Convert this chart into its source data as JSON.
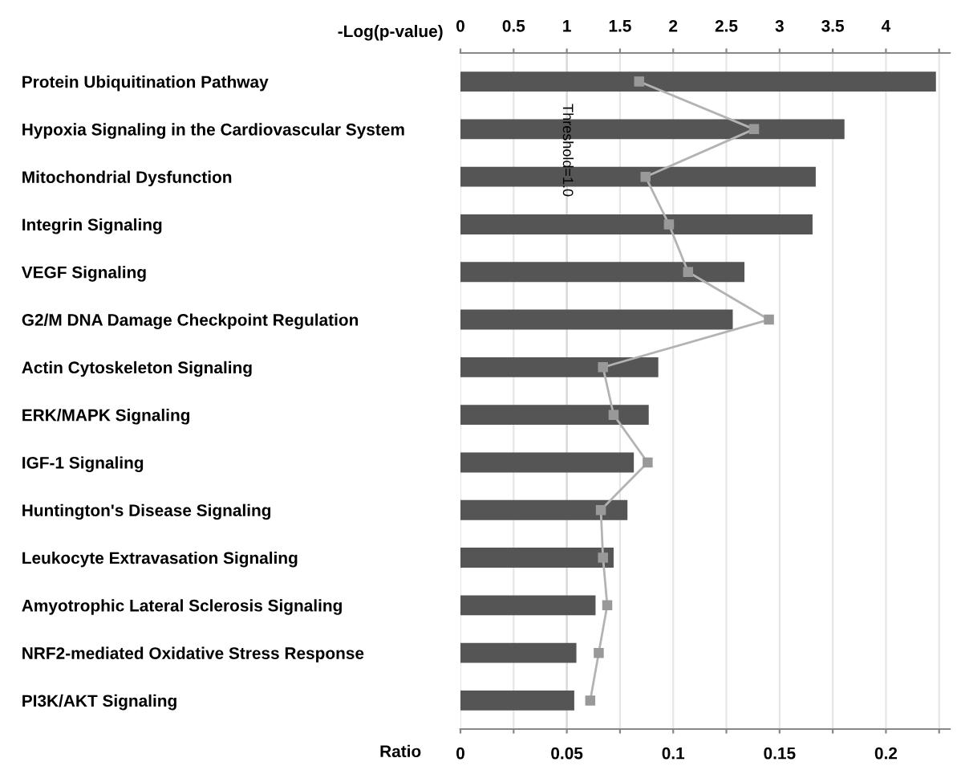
{
  "chart_data": {
    "type": "bar",
    "orientation": "horizontal",
    "xlabel": "Ratio",
    "x2label": "-Log(p-value)",
    "categories": [
      "Protein Ubiquitination Pathway",
      "Hypoxia Signaling in the Cardiovascular System",
      "Mitochondrial Dysfunction",
      "Integrin Signaling",
      "VEGF Signaling",
      "G2/M DNA Damage Checkpoint Regulation",
      "Actin Cytoskeleton Signaling",
      "ERK/MAPK Signaling",
      "IGF-1 Signaling",
      "Huntington's Disease Signaling",
      "Leukocyte Extravasation Signaling",
      "Amyotrophic Lateral Sclerosis Signaling",
      "NRF2-mediated Oxidative Stress Response",
      "PI3K/AKT Signaling"
    ],
    "series": [
      {
        "axis": "x2",
        "color": "#555555",
        "values": [
          4.47,
          3.61,
          3.34,
          3.31,
          2.67,
          2.56,
          1.86,
          1.77,
          1.63,
          1.57,
          1.44,
          1.27,
          1.09,
          1.07
        ]
      },
      {
        "type": "line",
        "color": "#b3b3b3",
        "marker": "square",
        "line_style": "solid",
        "values": [
          0.084,
          0.138,
          0.087,
          0.098,
          0.107,
          0.145,
          0.067,
          0.072,
          0.088,
          0.066,
          0.067,
          0.069,
          0.065,
          0.061
        ]
      }
    ],
    "xlim": [
      0,
      0.23
    ],
    "xticks": [
      0,
      {
        "value": 0.025,
        "label": null
      },
      0.05,
      {
        "value": 0.075,
        "label": null
      },
      0.1,
      {
        "value": 0.125,
        "label": null
      },
      0.15,
      {
        "value": 0.175,
        "label": null
      },
      0.2,
      {
        "value": 0.225,
        "label": null
      }
    ],
    "x2lim": [
      0,
      4.6
    ],
    "x2ticks": [
      0,
      0.5,
      1,
      1.5,
      2,
      2.5,
      3,
      3.5,
      4,
      {
        "value": 4.5,
        "label": null
      }
    ],
    "ref_lines": [
      {
        "axis": "x2",
        "value": 1,
        "label": "Threshold=1.0",
        "color": "#d9d9d9"
      }
    ],
    "grid": "x2",
    "legend": false
  }
}
